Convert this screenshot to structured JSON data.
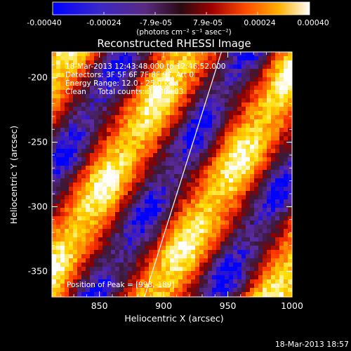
{
  "colorbar": {
    "ticks": [
      "-0.00040",
      "-0.00024",
      "-7.9e-05",
      "7.9e-05",
      "0.00024",
      "0.00040"
    ],
    "units": "(photons cm⁻² s⁻¹ asec⁻²)"
  },
  "info": {
    "line1": "18-Mar-2013 12:43:48.000 to 12:46:52.000",
    "line2": "Detectors: 3F 5F 6F 7F 8F 9F, Att 0",
    "line3": "Energy Range: 12.0 - 25.0 keV",
    "line4": "Clean     Total counts: 3.98E+03",
    "peak": "Position of Peak = [998,-189]"
  },
  "footer_date": "18-Mar-2013 18:57",
  "chart_data": {
    "type": "heatmap",
    "title": "Reconstructed RHESSI Image",
    "xlabel": "Heliocentric X (arcsec)",
    "ylabel": "Heliocentric Y (arcsec)",
    "xlim": [
      813,
      1000
    ],
    "ylim": [
      -370,
      -180
    ],
    "xticks": [
      850,
      900,
      950,
      1000
    ],
    "yticks": [
      -200,
      -250,
      -300,
      -350
    ],
    "value_range": [
      -0.0004,
      0.0004
    ],
    "colormap": [
      "#0000ff",
      "#5a2aa0",
      "#3a1a3a",
      "#8a0000",
      "#ff3300",
      "#ff8800",
      "#ffdd00",
      "#ffffff"
    ],
    "pattern": "diagonal fringes (bright yellow/white bands alternating with blue/purple minima)",
    "limb_line": {
      "x1": 885,
      "y1": -370,
      "x2": 945,
      "y2": -180
    }
  }
}
